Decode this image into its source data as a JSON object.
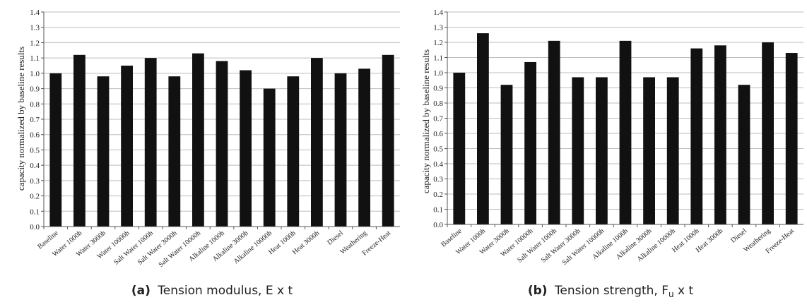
{
  "chart_data": [
    {
      "type": "bar",
      "ylabel": "capacity normalized by baseline results",
      "ylim": [
        0,
        1.4
      ],
      "yticks": [
        "0.0",
        "0.1",
        "0.2",
        "0.3",
        "0.4",
        "0.5",
        "0.6",
        "0.7",
        "0.8",
        "0.9",
        "1.0",
        "1.1",
        "1.2",
        "1.3",
        "1.4"
      ],
      "grid": true,
      "categories": [
        "Baseline",
        "Water 1000h",
        "Water 3000h",
        "Water 10000h",
        "Salt Water 1000h",
        "Salt Water 3000h",
        "Salt Water 10000h",
        "Alkaline 1000h",
        "Alkaline 3000h",
        "Alkaline 10000h",
        "Heat 1000h",
        "Heat 3000h",
        "Diesel",
        "Weathering",
        "Freeze-Heat"
      ],
      "values": [
        1.0,
        1.12,
        0.98,
        1.05,
        1.1,
        0.98,
        1.13,
        1.08,
        1.02,
        0.9,
        0.98,
        1.1,
        1.0,
        1.03,
        1.12
      ],
      "color": "#111111",
      "caption_label": "(a)",
      "caption_text": "Tension modulus, E x t"
    },
    {
      "type": "bar",
      "ylabel": "capacity normalized by baseline results",
      "ylim": [
        0,
        1.4
      ],
      "yticks": [
        "0.0",
        "0.1",
        "0.2",
        "0.3",
        "0.4",
        "0.5",
        "0.6",
        "0.7",
        "0.8",
        "0.9",
        "1.0",
        "1.1",
        "1.2",
        "1.3",
        "1.4"
      ],
      "grid": true,
      "categories": [
        "Baseline",
        "Water 1000h",
        "Water 3000h",
        "Water 10000h",
        "Salt Water 1000h",
        "Salt Water 3000h",
        "Salt Water 10000h",
        "Alkaline 1000h",
        "Alkaline 3000h",
        "Alkaline 10000h",
        "Heat 1000h",
        "Heat 3000h",
        "Diesel",
        "Weathering",
        "Freeze-Heat"
      ],
      "values": [
        1.0,
        1.26,
        0.92,
        1.07,
        1.21,
        0.97,
        0.97,
        1.21,
        0.97,
        0.97,
        1.16,
        1.18,
        0.92,
        1.2,
        1.13
      ],
      "color": "#111111",
      "caption_label": "(b)",
      "caption_text_pre": "Tension strength, F",
      "caption_sub": "u",
      "caption_text_post": " x t"
    }
  ]
}
